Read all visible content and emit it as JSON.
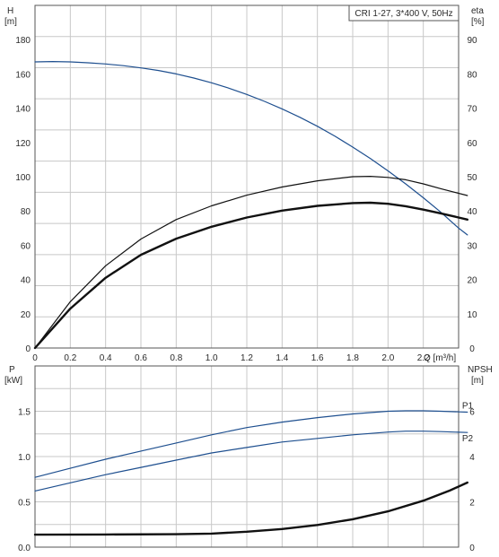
{
  "chart_data": [
    {
      "type": "line",
      "title": "CRI 1-27, 3*400 V, 50Hz",
      "xlabel": "Q [m³/h]",
      "x_ticks": [
        "0",
        "0.2",
        "0.4",
        "0.6",
        "0.8",
        "1.0",
        "1.2",
        "1.4",
        "1.6",
        "1.8",
        "2.0",
        "2.2"
      ],
      "xlim": [
        0,
        2.4
      ],
      "ylabel_left": [
        "H",
        "[m]"
      ],
      "ylim_left": [
        0,
        200
      ],
      "y_ticks_left": [
        "0",
        "20",
        "40",
        "60",
        "80",
        "100",
        "120",
        "140",
        "160",
        "180"
      ],
      "ylabel_right": [
        "eta",
        "[%]"
      ],
      "ylim_right": [
        0,
        100
      ],
      "y_ticks_right": [
        "0",
        "10",
        "20",
        "30",
        "40",
        "50",
        "60",
        "70",
        "80",
        "90"
      ],
      "grid": true,
      "series": [
        {
          "axis": "left",
          "color": "#1e4f8f",
          "x": [
            0,
            0.1,
            0.2,
            0.3,
            0.4,
            0.5,
            0.6,
            0.7,
            0.8,
            0.9,
            1.0,
            1.1,
            1.2,
            1.3,
            1.4,
            1.5,
            1.6,
            1.7,
            1.8,
            1.9,
            2.0,
            2.1,
            2.2,
            2.3,
            2.4,
            2.45
          ],
          "y": [
            167,
            167.2,
            167,
            166.5,
            165.8,
            164.8,
            163.5,
            162,
            160,
            157.6,
            154.8,
            151.6,
            148,
            144,
            139.6,
            134.7,
            129.4,
            123.6,
            117.3,
            110.6,
            103.4,
            95.8,
            87.7,
            79.2,
            70,
            66
          ]
        },
        {
          "axis": "right",
          "color": "#111111",
          "x": [
            0,
            0.2,
            0.4,
            0.6,
            0.8,
            1.0,
            1.2,
            1.4,
            1.6,
            1.8,
            1.9,
            2.0,
            2.1,
            2.2,
            2.3,
            2.45
          ],
          "y": [
            0,
            13.5,
            24,
            31.8,
            37.5,
            41.5,
            44.6,
            47,
            48.8,
            50,
            50.1,
            49.8,
            49.1,
            47.9,
            46.5,
            44.5
          ]
        },
        {
          "axis": "right",
          "color": "#111111",
          "bold": true,
          "x": [
            0,
            0.2,
            0.4,
            0.6,
            0.8,
            1.0,
            1.2,
            1.4,
            1.6,
            1.8,
            1.9,
            2.0,
            2.1,
            2.2,
            2.3,
            2.45
          ],
          "y": [
            0,
            11.5,
            20.5,
            27.2,
            31.9,
            35.4,
            38.1,
            40.1,
            41.5,
            42.3,
            42.4,
            42.1,
            41.4,
            40.4,
            39.3,
            37.5
          ]
        }
      ]
    },
    {
      "type": "line",
      "x_ticks": [],
      "xlim": [
        0,
        2.4
      ],
      "ylabel_left": [
        "P",
        "[kW]"
      ],
      "ylim_left": [
        0,
        2
      ],
      "y_ticks_left": [
        "0.0",
        "0.5",
        "1.0",
        "1.5"
      ],
      "ylabel_right": [
        "NPSH",
        "[m]"
      ],
      "ylim_right": [
        0,
        8
      ],
      "y_ticks_right": [
        "0",
        "2",
        "4",
        "6"
      ],
      "grid": true,
      "series": [
        {
          "name": "P1",
          "axis": "left",
          "color": "#1e4f8f",
          "x": [
            0,
            0.2,
            0.4,
            0.6,
            0.8,
            1.0,
            1.2,
            1.4,
            1.6,
            1.8,
            2.0,
            2.1,
            2.2,
            2.3,
            2.45
          ],
          "y": [
            0.77,
            0.87,
            0.97,
            1.06,
            1.15,
            1.24,
            1.32,
            1.38,
            1.43,
            1.47,
            1.5,
            1.505,
            1.505,
            1.5,
            1.49
          ]
        },
        {
          "name": "P2",
          "axis": "left",
          "color": "#1e4f8f",
          "x": [
            0,
            0.2,
            0.4,
            0.6,
            0.8,
            1.0,
            1.2,
            1.4,
            1.6,
            1.8,
            2.0,
            2.1,
            2.2,
            2.3,
            2.45
          ],
          "y": [
            0.62,
            0.71,
            0.8,
            0.88,
            0.96,
            1.04,
            1.1,
            1.16,
            1.2,
            1.24,
            1.27,
            1.28,
            1.28,
            1.275,
            1.265
          ]
        },
        {
          "axis": "right",
          "color": "#111111",
          "bold": true,
          "x": [
            0,
            0.4,
            0.8,
            1.0,
            1.2,
            1.4,
            1.6,
            1.8,
            2.0,
            2.2,
            2.35,
            2.45
          ],
          "y": [
            0.55,
            0.56,
            0.57,
            0.6,
            0.68,
            0.8,
            0.98,
            1.23,
            1.58,
            2.05,
            2.5,
            2.85
          ]
        }
      ]
    }
  ]
}
